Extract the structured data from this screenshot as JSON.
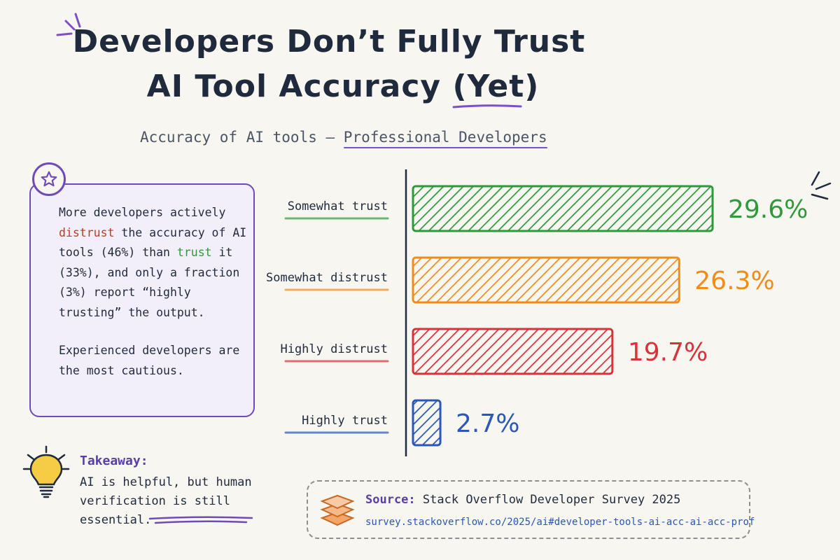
{
  "title": {
    "line1": "Developers Don’t Fully Trust",
    "line2_main": "AI Tool Accuracy ",
    "line2_emph": "(Yet)"
  },
  "subtitle": {
    "prefix": "Accuracy of AI tools – ",
    "highlight": "Professional Developers"
  },
  "insight": {
    "icon": "star-icon",
    "p1_a": "More developers actively ",
    "p1_distrust": "distrust",
    "p1_b": " the accuracy of AI tools (46%) than ",
    "p1_trust": "trust",
    "p1_c": " it (33%), and only a fraction (3%) report “highly trusting” the output.",
    "p2": "Experienced developers are the most cautious."
  },
  "takeaway": {
    "icon": "lightbulb-icon",
    "heading": "Takeaway:",
    "text": "AI is helpful, but human verification is still essential."
  },
  "source": {
    "icon": "layers-icon",
    "label": "Source:",
    "name": "Stack Overflow Developer Survey 2025",
    "url": "survey.stackoverflow.co/2025/ai#developer-tools-ai-acc-ai-acc-prof"
  },
  "colors": {
    "green": "#2f9a3b",
    "orange": "#f08c1a",
    "red": "#d9323a",
    "blue": "#2b57b6",
    "purple": "#6f4bb8"
  },
  "chart_data": {
    "type": "bar",
    "orientation": "horizontal",
    "categories": [
      "Somewhat trust",
      "Somewhat distrust",
      "Highly distrust",
      "Highly trust"
    ],
    "values": [
      29.6,
      26.3,
      19.7,
      2.7
    ],
    "value_labels": [
      "29.6%",
      "26.3%",
      "19.7%",
      "2.7%"
    ],
    "colors": [
      "#2f9a3b",
      "#f08c1a",
      "#d9323a",
      "#2b57b6"
    ],
    "xlim": [
      0,
      29.6
    ],
    "grid": false,
    "legend": "none"
  }
}
